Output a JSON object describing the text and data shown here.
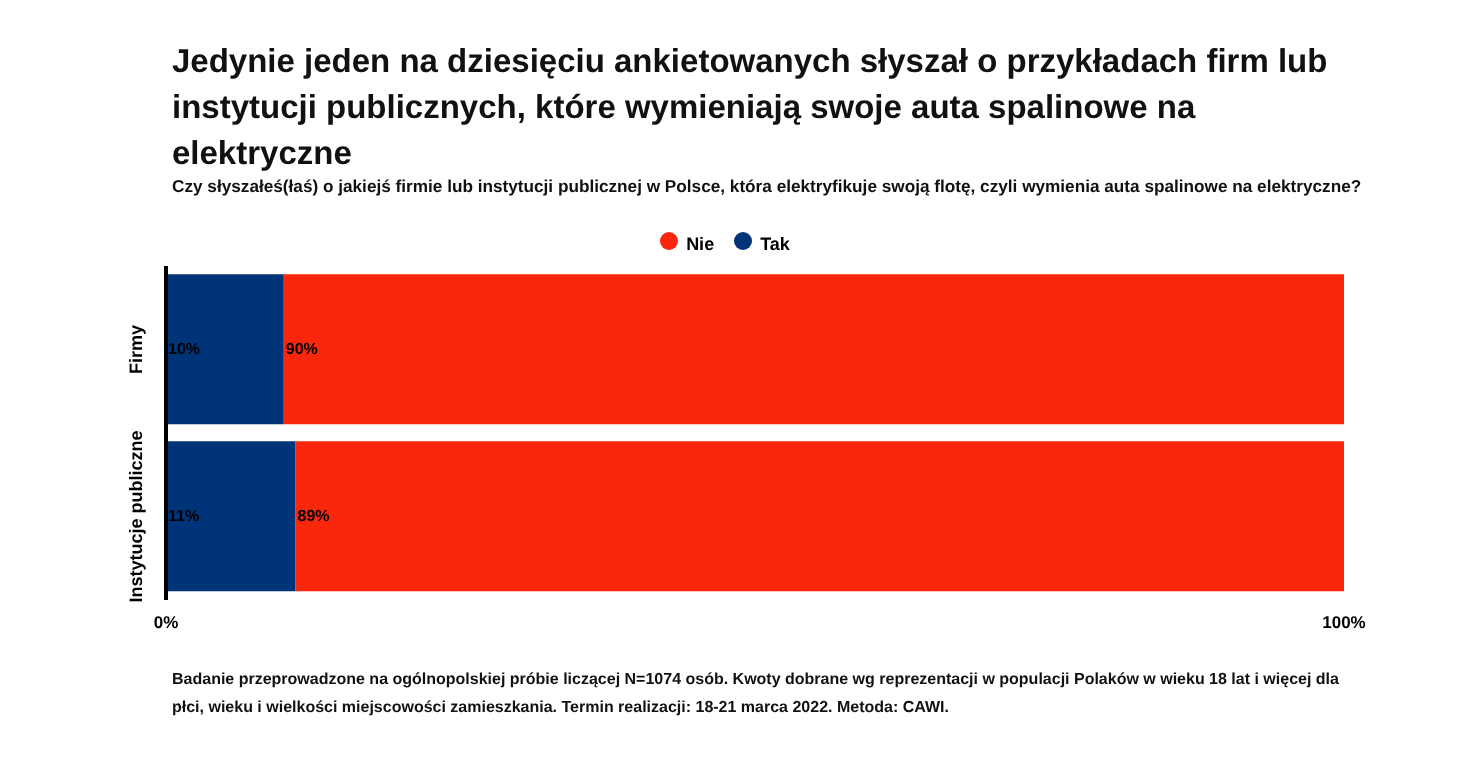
{
  "chart_data": {
    "type": "bar",
    "orientation": "horizontal",
    "stacked": true,
    "title": "Jedynie jeden na dziesięciu ankietowanych słyszał o przykładach firm lub instytucji publicznych, które wymieniają swoje auta spalinowe na elektryczne",
    "subtitle": "Czy słyszałeś(łaś) o jakiejś firmie lub instytucji publicznej w Polsce, która elektryfikuje swoją flotę, czyli wymienia auta spalinowe na elektryczne?",
    "categories": [
      "Firmy",
      "Instytucje publiczne"
    ],
    "series": [
      {
        "name": "Tak",
        "color": "#003479",
        "values": [
          10,
          11
        ],
        "value_labels": [
          "10%",
          "11%"
        ]
      },
      {
        "name": "Nie",
        "color": "#fa270c",
        "values": [
          90,
          89
        ],
        "value_labels": [
          "90%",
          "89%"
        ]
      }
    ],
    "xlim": [
      0,
      100
    ],
    "xticks": [
      {
        "value": 0,
        "label": "0%"
      },
      {
        "value": 100,
        "label": "100%"
      }
    ],
    "legend": "top",
    "grid": false,
    "annotations": [
      "Badanie przeprowadzone na ogólnopolskiej próbie liczącej N=1074 osób. Kwoty dobrane wg reprezentacji w populacji Polaków w wieku 18 lat i więcej dla płci, wieku i wielkości miejscowości zamieszkania. Termin realizacji:  18-21 marca 2022. Metoda: CAWI."
    ]
  }
}
